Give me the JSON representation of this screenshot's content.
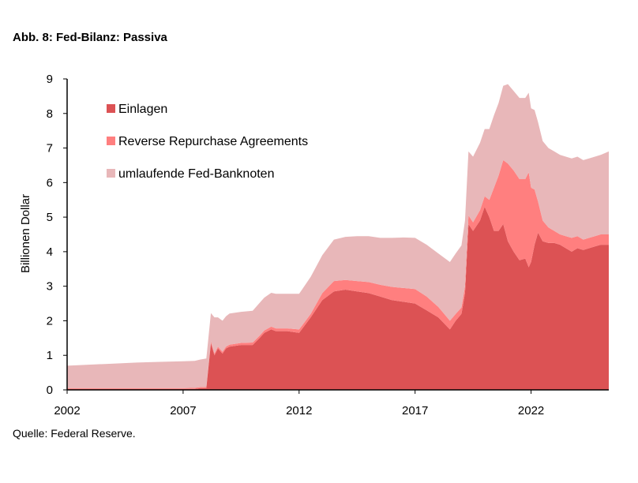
{
  "title": "Abb. 8: Fed-Bilanz: Passiva",
  "source": "Quelle: Federal Reserve.",
  "chart_data": {
    "type": "area",
    "stacked": true,
    "title": "Abb. 8: Fed-Bilanz: Passiva",
    "ylabel": "Billionen Dollar",
    "xlabel": "",
    "xlim": [
      2002,
      2025.35
    ],
    "ylim": [
      0,
      9
    ],
    "xticks": [
      "2002",
      "2007",
      "2012",
      "2017",
      "2022"
    ],
    "yticks": [
      "0",
      "1",
      "2",
      "3",
      "4",
      "5",
      "6",
      "7",
      "8",
      "9"
    ],
    "legend_position": "top-left",
    "x": [
      2002,
      2003,
      2004,
      2005,
      2006,
      2007,
      2007.5,
      2007.75,
      2008.0,
      2008.2,
      2008.35,
      2008.5,
      2008.7,
      2008.85,
      2009,
      2009.5,
      2010,
      2010.3,
      2010.5,
      2010.8,
      2011,
      2011.5,
      2012,
      2012.5,
      2013,
      2013.5,
      2014,
      2014.5,
      2015,
      2015.5,
      2016,
      2016.5,
      2017,
      2017.5,
      2018,
      2018.5,
      2018.75,
      2019,
      2019.15,
      2019.3,
      2019.5,
      2019.8,
      2020,
      2020.2,
      2020.4,
      2020.6,
      2020.8,
      2021,
      2021.25,
      2021.5,
      2021.75,
      2021.9,
      2022,
      2022.15,
      2022.3,
      2022.5,
      2022.75,
      2023,
      2023.25,
      2023.5,
      2023.75,
      2024,
      2024.25,
      2024.5,
      2024.75,
      2025,
      2025.35
    ],
    "series": [
      {
        "name": "Einlagen",
        "color": "#dc5254",
        "values": [
          0.03,
          0.03,
          0.03,
          0.03,
          0.03,
          0.03,
          0.03,
          0.05,
          0.05,
          1.35,
          1.0,
          1.2,
          1.05,
          1.2,
          1.25,
          1.3,
          1.3,
          1.5,
          1.65,
          1.75,
          1.7,
          1.7,
          1.65,
          2.1,
          2.6,
          2.85,
          2.9,
          2.85,
          2.8,
          2.7,
          2.6,
          2.55,
          2.5,
          2.3,
          2.1,
          1.75,
          2.0,
          2.2,
          2.8,
          4.8,
          4.6,
          4.9,
          5.3,
          5.0,
          4.6,
          4.6,
          4.8,
          4.3,
          4.0,
          3.75,
          3.8,
          3.55,
          3.7,
          4.2,
          4.55,
          4.3,
          4.25,
          4.25,
          4.2,
          4.1,
          4.0,
          4.1,
          4.05,
          4.1,
          4.15,
          4.2,
          4.2
        ]
      },
      {
        "name": "Reverse Repurchase Agreements",
        "color": "#ff7f7f",
        "values": [
          0.02,
          0.02,
          0.02,
          0.02,
          0.02,
          0.02,
          0.03,
          0.03,
          0.04,
          0.05,
          0.05,
          0.05,
          0.05,
          0.05,
          0.06,
          0.06,
          0.07,
          0.07,
          0.07,
          0.08,
          0.08,
          0.08,
          0.1,
          0.1,
          0.2,
          0.3,
          0.28,
          0.3,
          0.32,
          0.34,
          0.38,
          0.4,
          0.42,
          0.4,
          0.3,
          0.25,
          0.2,
          0.18,
          0.2,
          0.25,
          0.25,
          0.3,
          0.3,
          0.5,
          1.25,
          1.6,
          1.85,
          2.25,
          2.35,
          2.35,
          2.3,
          2.75,
          2.15,
          1.6,
          0.9,
          0.6,
          0.45,
          0.35,
          0.3,
          0.35,
          0.4,
          0.35,
          0.3,
          0.3,
          0.3,
          0.3,
          0.3
        ]
      },
      {
        "name": "umlaufende Fed-Banknoten",
        "color": "#e8b7b9",
        "values": [
          0.65,
          0.68,
          0.71,
          0.74,
          0.76,
          0.78,
          0.78,
          0.8,
          0.82,
          0.82,
          1.05,
          0.85,
          0.9,
          0.88,
          0.9,
          0.9,
          0.92,
          0.95,
          0.95,
          0.98,
          1.0,
          1.0,
          1.03,
          1.07,
          1.1,
          1.2,
          1.25,
          1.3,
          1.33,
          1.36,
          1.42,
          1.46,
          1.48,
          1.5,
          1.55,
          1.7,
          1.75,
          1.8,
          1.9,
          1.85,
          1.9,
          1.95,
          1.95,
          2.05,
          2.1,
          2.1,
          2.15,
          2.3,
          2.3,
          2.35,
          2.35,
          2.3,
          2.3,
          2.3,
          2.3,
          2.3,
          2.3,
          2.3,
          2.3,
          2.3,
          2.3,
          2.3,
          2.3,
          2.3,
          2.3,
          2.3,
          2.4
        ]
      }
    ]
  }
}
